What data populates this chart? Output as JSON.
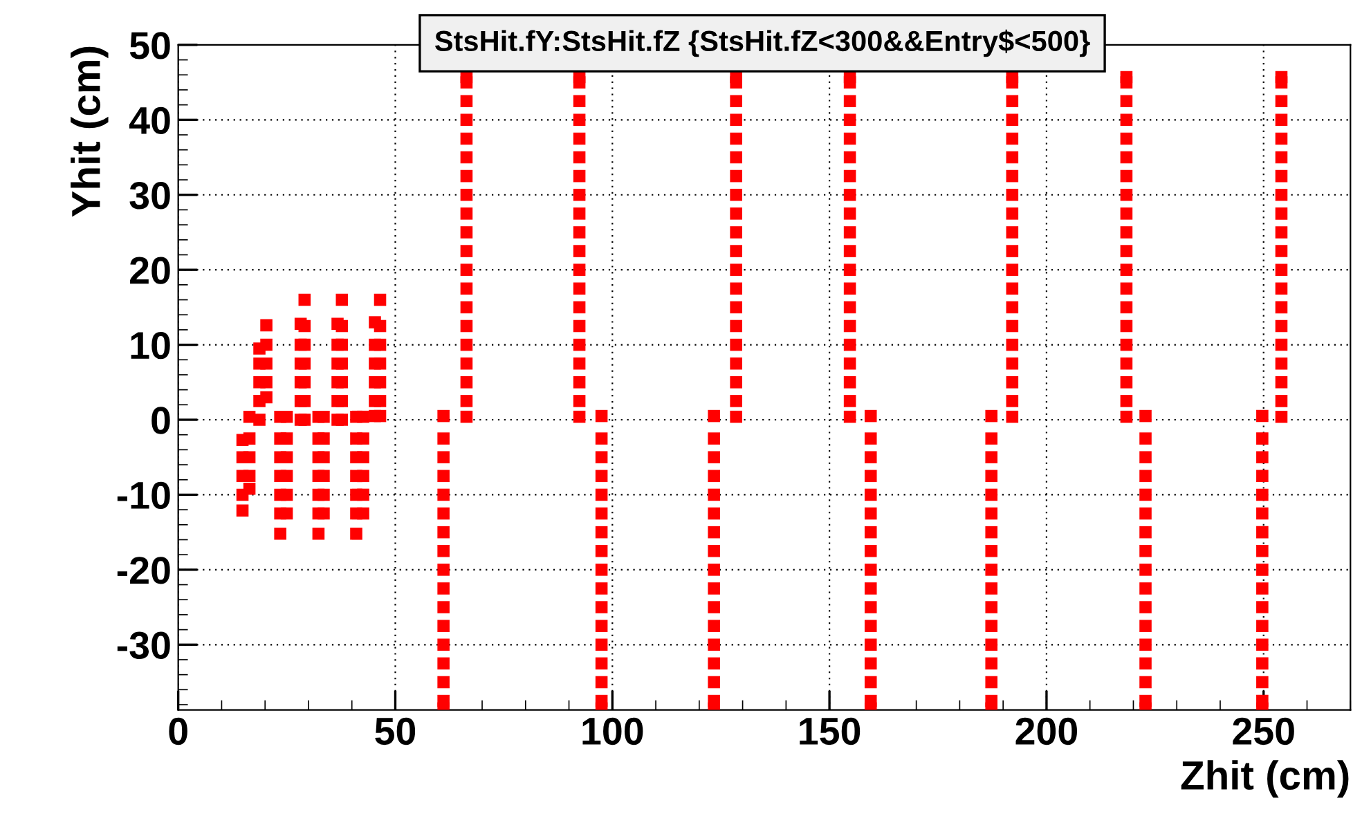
{
  "chart_data": {
    "type": "scatter",
    "title": "StsHit.fY:StsHit.fZ {StsHit.fZ<300&&Entry$<500}",
    "xlabel": "Zhit (cm)",
    "ylabel": "Yhit (cm)",
    "xlim": [
      0,
      270
    ],
    "ylim": [
      -38.7,
      50
    ],
    "xticks": [
      0,
      50,
      100,
      150,
      200,
      250
    ],
    "yticks": [
      -30,
      -20,
      -10,
      0,
      10,
      20,
      30,
      40,
      50
    ],
    "grid": true,
    "marker": "square",
    "series": [
      {
        "color": "#ff0000",
        "x": [
          14.8,
          14.8,
          14.8,
          14.8,
          14.8,
          16.4,
          16.4,
          16.4,
          16.4,
          16.4,
          18.7,
          18.7,
          18.7,
          18.7,
          18.7,
          20.3,
          20.3,
          20.3,
          20.3,
          20.3,
          23.5,
          23.5,
          23.5,
          23.5,
          23.5,
          23.5,
          23.5,
          25,
          25,
          25,
          25,
          25,
          25,
          28.2,
          28.2,
          28.2,
          28.2,
          28.2,
          28.2,
          29.1,
          29.1,
          29.1,
          29.1,
          29.1,
          29.1,
          29.1,
          32.3,
          32.3,
          32.3,
          32.3,
          32.3,
          32.3,
          32.3,
          33.5,
          33.5,
          33.5,
          33.5,
          33.5,
          33.5,
          36.7,
          36.7,
          36.7,
          36.7,
          36.7,
          36.7,
          37.7,
          37.7,
          37.7,
          37.7,
          37.7,
          37.7,
          37.7,
          41,
          41,
          41,
          41,
          41,
          41,
          41,
          42.6,
          42.6,
          42.6,
          42.6,
          42.6,
          42.6,
          45.3,
          45.3,
          45.3,
          45.3,
          45.3,
          45.3,
          46.5,
          46.5,
          46.5,
          46.5,
          46.5,
          46.5,
          46.5
        ],
        "values": [
          -2.7,
          -5,
          -7.5,
          -10,
          -12.1,
          0.4,
          -2.5,
          -5,
          -7.5,
          -9.2,
          9.5,
          7.5,
          5,
          2.5,
          0,
          12.6,
          10,
          7.5,
          5,
          3,
          0.4,
          -2.5,
          -5,
          -7.5,
          -10,
          -12.5,
          -15.2,
          0.4,
          -2.5,
          -5,
          -7.5,
          -10,
          -12.5,
          12.8,
          10,
          7.5,
          5,
          2.5,
          0,
          16,
          12.5,
          10,
          7.5,
          5,
          2.5,
          0,
          0.4,
          -2.5,
          -5,
          -7.5,
          -10,
          -12.5,
          -15.2,
          0.4,
          -2.5,
          -5,
          -7.5,
          -10,
          -12.5,
          12.8,
          10,
          7.5,
          5,
          2.5,
          0,
          16,
          12.5,
          10,
          7.5,
          5,
          2.5,
          0,
          0.4,
          -2.5,
          -5,
          -7.5,
          -10,
          -12.5,
          -15.2,
          0.4,
          -2.5,
          -5,
          -7.5,
          -10,
          -12.5,
          13,
          10,
          7.5,
          5,
          2.5,
          0.5,
          16,
          12.5,
          10,
          7.5,
          5,
          2.5,
          0.5
        ]
      },
      {
        "color": "#ff0000",
        "x": [
          66.4,
          66.4,
          66.4,
          66.4,
          66.4,
          66.4,
          66.4,
          66.4,
          66.4,
          66.4,
          66.4,
          66.4,
          66.4,
          66.4,
          66.4,
          66.4,
          66.4,
          66.4,
          66.4,
          66.4,
          92.4,
          92.4,
          92.4,
          92.4,
          92.4,
          92.4,
          92.4,
          92.4,
          92.4,
          92.4,
          92.4,
          92.4,
          92.4,
          92.4,
          92.4,
          92.4,
          92.4,
          92.4,
          92.4,
          92.4,
          128.5,
          128.5,
          128.5,
          128.5,
          128.5,
          128.5,
          128.5,
          128.5,
          128.5,
          128.5,
          128.5,
          128.5,
          128.5,
          128.5,
          128.5,
          128.5,
          128.5,
          128.5,
          128.5,
          128.5,
          154.7,
          154.7,
          154.7,
          154.7,
          154.7,
          154.7,
          154.7,
          154.7,
          154.7,
          154.7,
          154.7,
          154.7,
          154.7,
          154.7,
          154.7,
          154.7,
          154.7,
          154.7,
          154.7,
          154.7,
          192.1,
          192.1,
          192.1,
          192.1,
          192.1,
          192.1,
          192.1,
          192.1,
          192.1,
          192.1,
          192.1,
          192.1,
          192.1,
          192.1,
          192.1,
          192.1,
          192.1,
          192.1,
          192.1,
          192.1,
          218.4,
          218.4,
          218.4,
          218.4,
          218.4,
          218.4,
          218.4,
          218.4,
          218.4,
          218.4,
          218.4,
          218.4,
          218.4,
          218.4,
          218.4,
          218.4,
          218.4,
          218.4,
          218.4,
          218.4,
          254.1,
          254.1,
          254.1,
          254.1,
          254.1,
          254.1,
          254.1,
          254.1,
          254.1,
          254.1,
          254.1,
          254.1,
          254.1,
          254.1,
          254.1,
          254.1,
          254.1,
          254.1,
          254.1,
          254.1
        ],
        "values": [
          0.4,
          2.5,
          5,
          7.5,
          10,
          12.5,
          15,
          17.5,
          20,
          22.5,
          25,
          27.5,
          30,
          32.5,
          35,
          37.5,
          40,
          42.5,
          45,
          45.7,
          0.4,
          2.5,
          5,
          7.5,
          10,
          12.5,
          15,
          17.5,
          20,
          22.5,
          25,
          27.5,
          30,
          32.5,
          35,
          37.5,
          40,
          42.5,
          45,
          45.7,
          0.4,
          2.5,
          5,
          7.5,
          10,
          12.5,
          15,
          17.5,
          20,
          22.5,
          25,
          27.5,
          30,
          32.5,
          35,
          37.5,
          40,
          42.5,
          45,
          45.7,
          0.4,
          2.5,
          5,
          7.5,
          10,
          12.5,
          15,
          17.5,
          20,
          22.5,
          25,
          27.5,
          30,
          32.5,
          35,
          37.5,
          40,
          42.5,
          45,
          45.7,
          0.4,
          2.5,
          5,
          7.5,
          10,
          12.5,
          15,
          17.5,
          20,
          22.5,
          25,
          27.5,
          30,
          32.5,
          35,
          37.5,
          40,
          42.5,
          45,
          45.7,
          0.4,
          2.5,
          5,
          7.5,
          10,
          12.5,
          15,
          17.5,
          20,
          22.5,
          25,
          27.5,
          30,
          32.5,
          35,
          37.5,
          40,
          42.5,
          45,
          45.7,
          0.4,
          2.5,
          5,
          7.5,
          10,
          12.5,
          15,
          17.5,
          20,
          22.5,
          25,
          27.5,
          30,
          32.5,
          35,
          37.5,
          40,
          42.5,
          45,
          45.7
        ]
      },
      {
        "color": "#ff0000",
        "x": [
          61.1,
          61.1,
          61.1,
          61.1,
          61.1,
          61.1,
          61.1,
          61.1,
          61.1,
          61.1,
          61.1,
          61.1,
          61.1,
          61.1,
          61.1,
          61.1,
          61.1,
          97.5,
          97.5,
          97.5,
          97.5,
          97.5,
          97.5,
          97.5,
          97.5,
          97.5,
          97.5,
          97.5,
          97.5,
          97.5,
          97.5,
          97.5,
          97.5,
          97.5,
          123.4,
          123.4,
          123.4,
          123.4,
          123.4,
          123.4,
          123.4,
          123.4,
          123.4,
          123.4,
          123.4,
          123.4,
          123.4,
          123.4,
          123.4,
          123.4,
          123.4,
          159.5,
          159.5,
          159.5,
          159.5,
          159.5,
          159.5,
          159.5,
          159.5,
          159.5,
          159.5,
          159.5,
          159.5,
          159.5,
          159.5,
          159.5,
          159.5,
          159.5,
          187.3,
          187.3,
          187.3,
          187.3,
          187.3,
          187.3,
          187.3,
          187.3,
          187.3,
          187.3,
          187.3,
          187.3,
          187.3,
          187.3,
          187.3,
          187.3,
          187.3,
          222.8,
          222.8,
          222.8,
          222.8,
          222.8,
          222.8,
          222.8,
          222.8,
          222.8,
          222.8,
          222.8,
          222.8,
          222.8,
          222.8,
          222.8,
          222.8,
          222.8,
          249.7,
          249.7,
          249.7,
          249.7,
          249.7,
          249.7,
          249.7,
          249.7,
          249.7,
          249.7,
          249.7,
          249.7,
          249.7,
          249.7,
          249.7,
          249.7,
          249.7
        ],
        "values": [
          0.5,
          -2.5,
          -5,
          -7.5,
          -10,
          -12.5,
          -15,
          -17.5,
          -20,
          -22.5,
          -25,
          -27.5,
          -30,
          -32.5,
          -35,
          -37.5,
          -38.5,
          0.5,
          -2.5,
          -5,
          -7.5,
          -10,
          -12.5,
          -15,
          -17.5,
          -20,
          -22.5,
          -25,
          -27.5,
          -30,
          -32.5,
          -35,
          -37.5,
          -38.5,
          0.5,
          -2.5,
          -5,
          -7.5,
          -10,
          -12.5,
          -15,
          -17.5,
          -20,
          -22.5,
          -25,
          -27.5,
          -30,
          -32.5,
          -35,
          -37.5,
          -38.5,
          0.5,
          -2.5,
          -5,
          -7.5,
          -10,
          -12.5,
          -15,
          -17.5,
          -20,
          -22.5,
          -25,
          -27.5,
          -30,
          -32.5,
          -35,
          -37.5,
          -38.5,
          0.5,
          -2.5,
          -5,
          -7.5,
          -10,
          -12.5,
          -15,
          -17.5,
          -20,
          -22.5,
          -25,
          -27.5,
          -30,
          -32.5,
          -35,
          -37.5,
          -38.5,
          0.5,
          -2.5,
          -5,
          -7.5,
          -10,
          -12.5,
          -15,
          -17.5,
          -20,
          -22.5,
          -25,
          -27.5,
          -30,
          -32.5,
          -35,
          -37.5,
          -38.5,
          0.5,
          -2.5,
          -5,
          -7.5,
          -10,
          -12.5,
          -15,
          -17.5,
          -20,
          -22.5,
          -25,
          -27.5,
          -30,
          -32.5,
          -35,
          -37.5,
          -38.5
        ]
      }
    ]
  }
}
